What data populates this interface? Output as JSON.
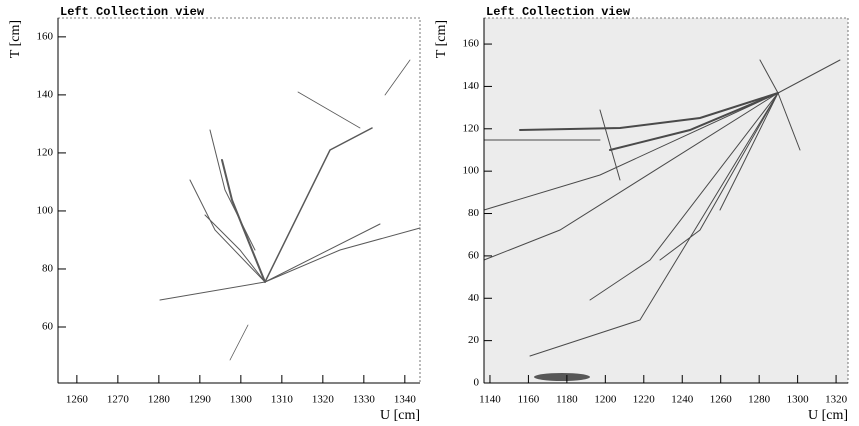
{
  "chart_data": [
    {
      "type": "image",
      "title": "Left Collection view",
      "x_label": "U [cm]",
      "y_label": "T [cm]",
      "xlim": [
        1255.4,
        1343.7
      ],
      "ylim": [
        40.7,
        166.5
      ],
      "xticks": [
        1260,
        1270,
        1280,
        1290,
        1300,
        1310,
        1320,
        1330,
        1340
      ],
      "yticks": [
        60,
        80,
        100,
        120,
        140,
        160
      ]
    },
    {
      "type": "image",
      "title": "Left Collection view",
      "x_label": "U [cm]",
      "y_label": "T [cm]",
      "xlim": [
        1136.9,
        1326.2
      ],
      "ylim": [
        0,
        172.3
      ],
      "xticks": [
        1140,
        1160,
        1180,
        1200,
        1220,
        1240,
        1260,
        1280,
        1300,
        1320
      ],
      "yticks": [
        0,
        20,
        40,
        60,
        80,
        100,
        120,
        140,
        160
      ]
    }
  ]
}
